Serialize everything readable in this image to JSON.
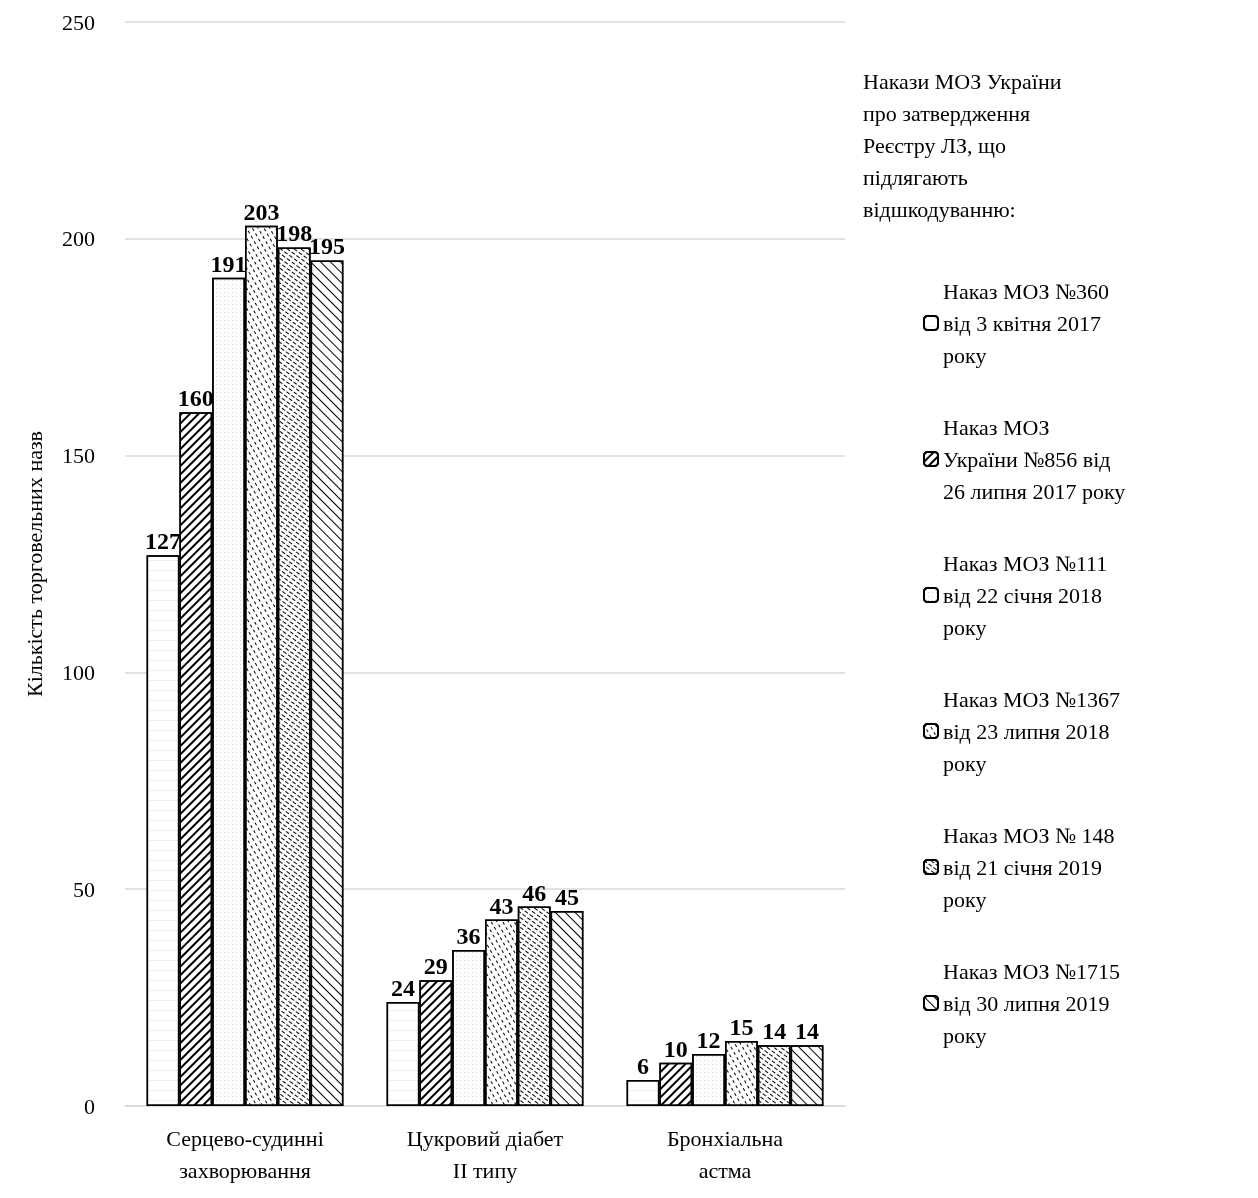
{
  "chart_data": {
    "type": "bar",
    "ylabel": "Кількість торговельних назв",
    "legend_title": "Накази МОЗ України про затвердження Реєстру ЛЗ, що підлягають відшкодуванню:",
    "categories": [
      "Серцево-судинні захворювання",
      "Цукровий діабет II типу",
      "Бронхіальна астма"
    ],
    "series": [
      {
        "name": "Наказ МОЗ №360 від 3 квітня 2017 року",
        "color": "#ffffff",
        "values": [
          127,
          24,
          6
        ]
      },
      {
        "name": "Наказ МОЗ України №856 від 26 липня 2017 року",
        "color": "#ffffff",
        "values": [
          160,
          29,
          10
        ]
      },
      {
        "name": "Наказ МОЗ №111 від 22 січня 2018 року",
        "color": "#ffffff",
        "values": [
          191,
          36,
          12
        ]
      },
      {
        "name": "Наказ МОЗ №1367 від 23 липня 2018 року",
        "color": "#ffffff",
        "values": [
          203,
          43,
          15
        ]
      },
      {
        "name": "Наказ МОЗ № 148 від 21 січня 2019 року",
        "color": "#ffffff",
        "values": [
          198,
          46,
          14
        ]
      },
      {
        "name": "Наказ МОЗ №1715 від 30 липня 2019 року",
        "color": "#ffffff",
        "values": [
          195,
          45,
          14
        ]
      }
    ],
    "ylim": [
      0,
      250
    ],
    "yticks": [
      0,
      50,
      100,
      150,
      200,
      250
    ],
    "grid": "y",
    "legend": "right",
    "data_labels": true
  }
}
